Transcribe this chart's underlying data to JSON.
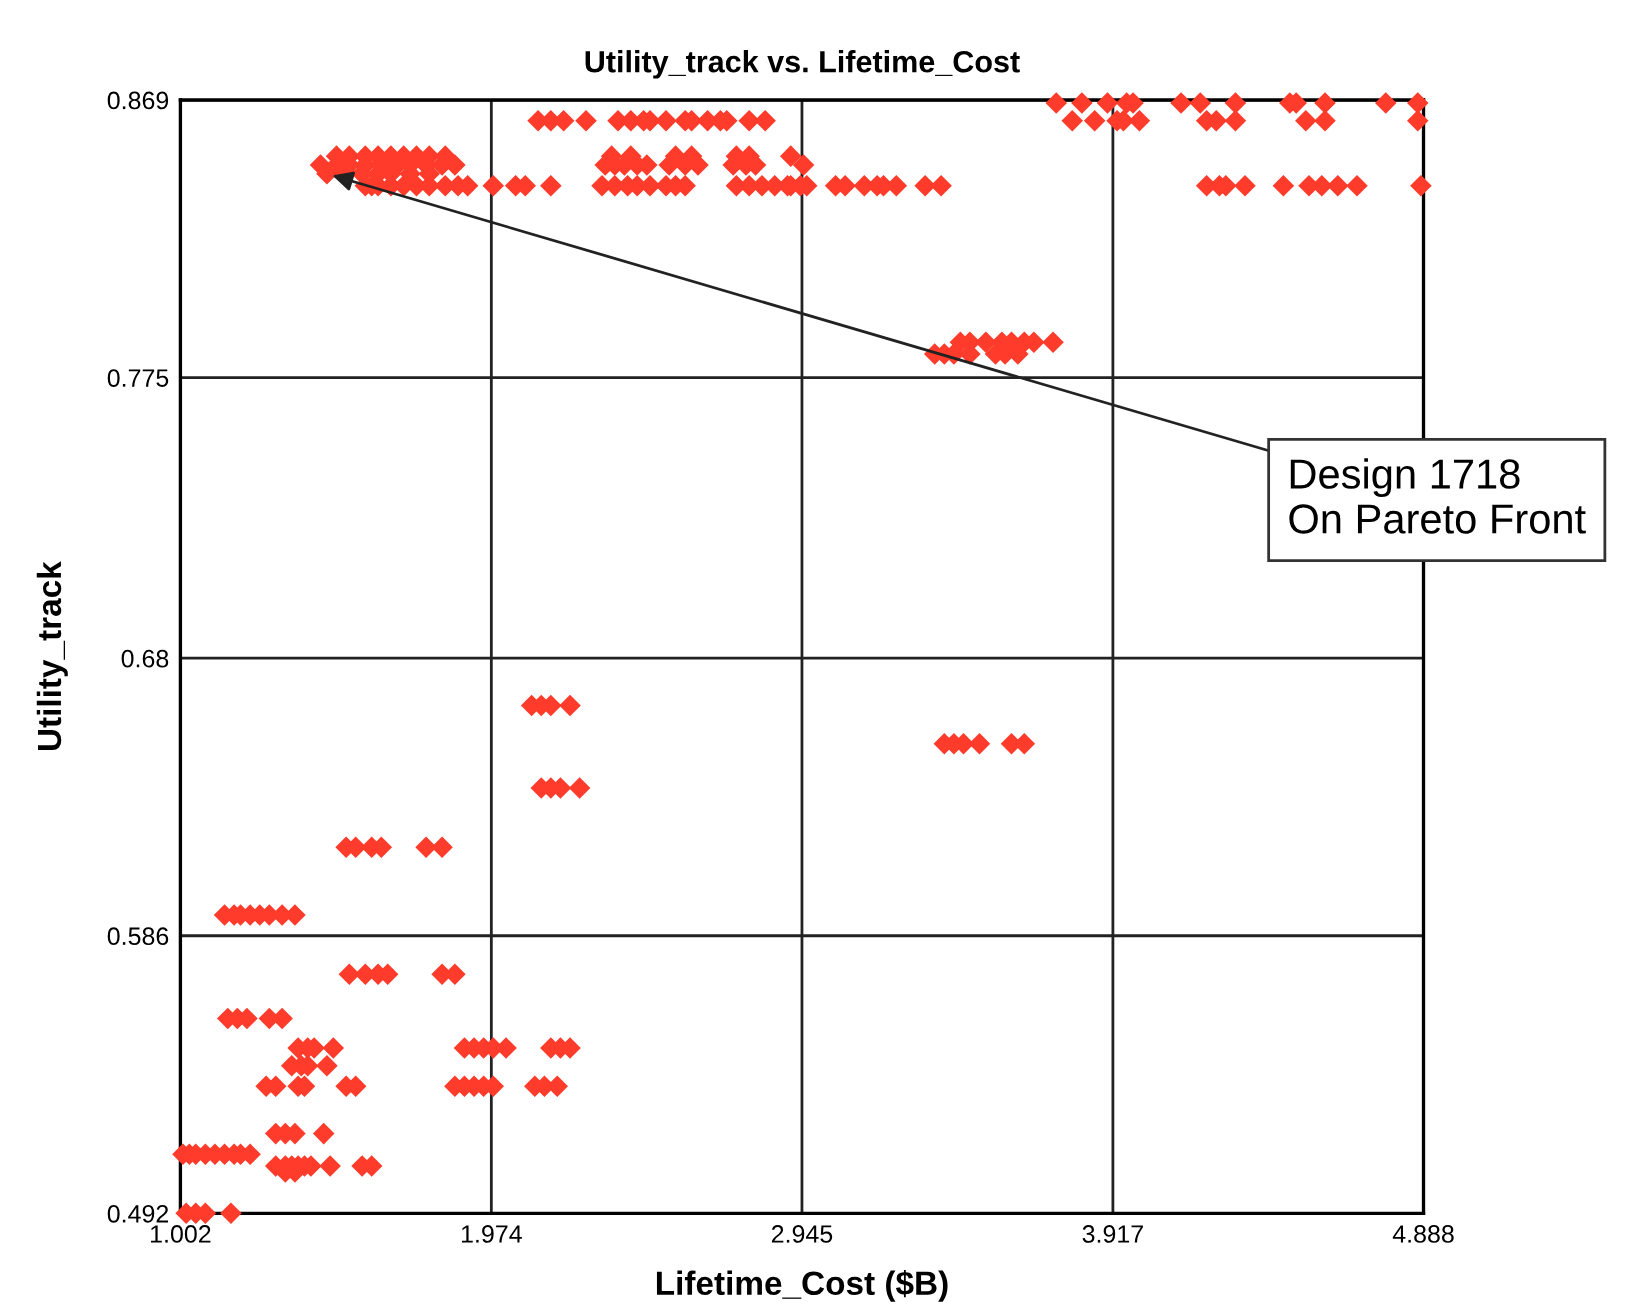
{
  "chart_data": {
    "type": "scatter",
    "title": "Utility_track vs. Lifetime_Cost",
    "xlabel": "Lifetime_Cost ($B)",
    "ylabel": "Utility_track",
    "xlim": [
      1.002,
      4.888
    ],
    "xticks": [
      1.002,
      1.974,
      2.945,
      3.917,
      4.888
    ],
    "ylim": [
      0.492,
      0.869
    ],
    "yticks": [
      0.492,
      0.586,
      0.68,
      0.775,
      0.869
    ],
    "grid": true,
    "marker": "diamond",
    "annotations": [
      {
        "text": "Design 1718\nOn Pareto Front",
        "x": 1.46,
        "y": 0.844
      }
    ],
    "series": [
      {
        "color": "#ff3b2b",
        "x": [
          3.74,
          3.82,
          3.9,
          3.96,
          3.98,
          4.13,
          4.19,
          4.3,
          4.47,
          4.49,
          4.58,
          4.77,
          4.87,
          3.79,
          3.86,
          3.93,
          3.95,
          4.0,
          4.21,
          4.24,
          4.3,
          4.52,
          4.58,
          4.87,
          2.12,
          2.16,
          2.2,
          2.27,
          2.37,
          2.41,
          2.45,
          2.47,
          2.52,
          2.58,
          2.6,
          2.65,
          2.69,
          2.71,
          2.78,
          2.83,
          2.91,
          2.96,
          3.05,
          3.08,
          3.14,
          3.18,
          3.2,
          3.24,
          3.33,
          3.38,
          4.21,
          4.25,
          4.27,
          4.33,
          4.45,
          4.53,
          4.57,
          4.62,
          4.68,
          4.88,
          1.58,
          1.6,
          1.62,
          1.66,
          1.7,
          1.74,
          1.78,
          1.83,
          1.87,
          1.9,
          1.98,
          2.05,
          2.08,
          2.16,
          2.32,
          2.36,
          2.4,
          2.43,
          2.47,
          2.52,
          2.55,
          2.58,
          2.74,
          2.78,
          2.82,
          2.86,
          2.9,
          2.94,
          2.91,
          2.35,
          2.41,
          2.55,
          2.6,
          2.74,
          2.78,
          1.49,
          1.53,
          1.58,
          1.62,
          1.66,
          1.7,
          1.74,
          1.78,
          1.83,
          2.95,
          2.33,
          2.36,
          2.39,
          2.43,
          2.46,
          2.53,
          2.58,
          2.62,
          2.73,
          2.77,
          2.8,
          1.44,
          1.49,
          1.53,
          1.58,
          1.63,
          1.68,
          1.72,
          1.77,
          1.82,
          1.86,
          1.46,
          1.52,
          1.57,
          1.62,
          1.66,
          1.72,
          1.78,
          3.44,
          3.47,
          3.52,
          3.57,
          3.6,
          3.64,
          3.67,
          3.73,
          3.36,
          3.39,
          3.42,
          3.47,
          3.55,
          3.58,
          3.62,
          3.39,
          3.42,
          3.45,
          3.5,
          3.6,
          3.64,
          2.1,
          2.13,
          2.16,
          2.22,
          2.13,
          2.16,
          2.19,
          2.25,
          1.52,
          1.55,
          1.6,
          1.63,
          1.77,
          1.82,
          1.14,
          1.17,
          1.19,
          1.22,
          1.25,
          1.28,
          1.32,
          1.36,
          1.53,
          1.58,
          1.62,
          1.65,
          1.82,
          1.86,
          1.15,
          1.18,
          1.21,
          1.28,
          1.32,
          1.37,
          1.4,
          1.42,
          1.48,
          1.89,
          1.92,
          1.95,
          1.98,
          2.02,
          2.16,
          2.19,
          2.22,
          1.35,
          1.38,
          1.4,
          1.46,
          1.27,
          1.3,
          1.37,
          1.39,
          1.52,
          1.55,
          1.86,
          1.89,
          1.92,
          1.95,
          1.98,
          2.11,
          2.14,
          2.18,
          1.3,
          1.33,
          1.36,
          1.45,
          1.01,
          1.03,
          1.05,
          1.08,
          1.11,
          1.14,
          1.17,
          1.19,
          1.22,
          1.3,
          1.33,
          1.35,
          1.37,
          1.39,
          1.41,
          1.47,
          1.57,
          1.6,
          1.33,
          1.36,
          1.02,
          1.05,
          1.08,
          1.16
        ],
        "values": [
          0.868,
          0.868,
          0.868,
          0.868,
          0.868,
          0.868,
          0.868,
          0.868,
          0.868,
          0.868,
          0.868,
          0.868,
          0.868,
          0.862,
          0.862,
          0.862,
          0.862,
          0.862,
          0.862,
          0.862,
          0.862,
          0.862,
          0.862,
          0.862,
          0.862,
          0.862,
          0.862,
          0.862,
          0.862,
          0.862,
          0.862,
          0.862,
          0.862,
          0.862,
          0.862,
          0.862,
          0.862,
          0.862,
          0.862,
          0.862,
          0.84,
          0.84,
          0.84,
          0.84,
          0.84,
          0.84,
          0.84,
          0.84,
          0.84,
          0.84,
          0.84,
          0.84,
          0.84,
          0.84,
          0.84,
          0.84,
          0.84,
          0.84,
          0.84,
          0.84,
          0.84,
          0.84,
          0.84,
          0.84,
          0.84,
          0.84,
          0.84,
          0.84,
          0.84,
          0.84,
          0.84,
          0.84,
          0.84,
          0.84,
          0.84,
          0.84,
          0.84,
          0.84,
          0.84,
          0.84,
          0.84,
          0.84,
          0.84,
          0.84,
          0.84,
          0.84,
          0.84,
          0.84,
          0.85,
          0.85,
          0.85,
          0.85,
          0.85,
          0.85,
          0.85,
          0.85,
          0.85,
          0.85,
          0.85,
          0.85,
          0.85,
          0.85,
          0.85,
          0.85,
          0.847,
          0.847,
          0.847,
          0.847,
          0.847,
          0.847,
          0.847,
          0.847,
          0.847,
          0.847,
          0.847,
          0.847,
          0.847,
          0.847,
          0.847,
          0.847,
          0.847,
          0.847,
          0.847,
          0.847,
          0.847,
          0.847,
          0.844,
          0.844,
          0.844,
          0.844,
          0.844,
          0.844,
          0.844,
          0.787,
          0.787,
          0.787,
          0.787,
          0.787,
          0.787,
          0.787,
          0.787,
          0.783,
          0.783,
          0.783,
          0.783,
          0.783,
          0.783,
          0.783,
          0.651,
          0.651,
          0.651,
          0.651,
          0.651,
          0.651,
          0.664,
          0.664,
          0.664,
          0.664,
          0.636,
          0.636,
          0.636,
          0.636,
          0.616,
          0.616,
          0.616,
          0.616,
          0.616,
          0.616,
          0.593,
          0.593,
          0.593,
          0.593,
          0.593,
          0.593,
          0.593,
          0.593,
          0.573,
          0.573,
          0.573,
          0.573,
          0.573,
          0.573,
          0.558,
          0.558,
          0.558,
          0.558,
          0.558,
          0.548,
          0.548,
          0.548,
          0.548,
          0.548,
          0.548,
          0.548,
          0.548,
          0.548,
          0.548,
          0.548,
          0.548,
          0.542,
          0.542,
          0.542,
          0.542,
          0.535,
          0.535,
          0.535,
          0.535,
          0.535,
          0.535,
          0.535,
          0.535,
          0.535,
          0.535,
          0.535,
          0.535,
          0.535,
          0.535,
          0.519,
          0.519,
          0.519,
          0.519,
          0.512,
          0.512,
          0.512,
          0.512,
          0.512,
          0.512,
          0.512,
          0.512,
          0.512,
          0.508,
          0.508,
          0.508,
          0.508,
          0.508,
          0.508,
          0.508,
          0.508,
          0.508,
          0.506,
          0.506,
          0.492,
          0.492,
          0.492,
          0.492
        ]
      }
    ]
  }
}
